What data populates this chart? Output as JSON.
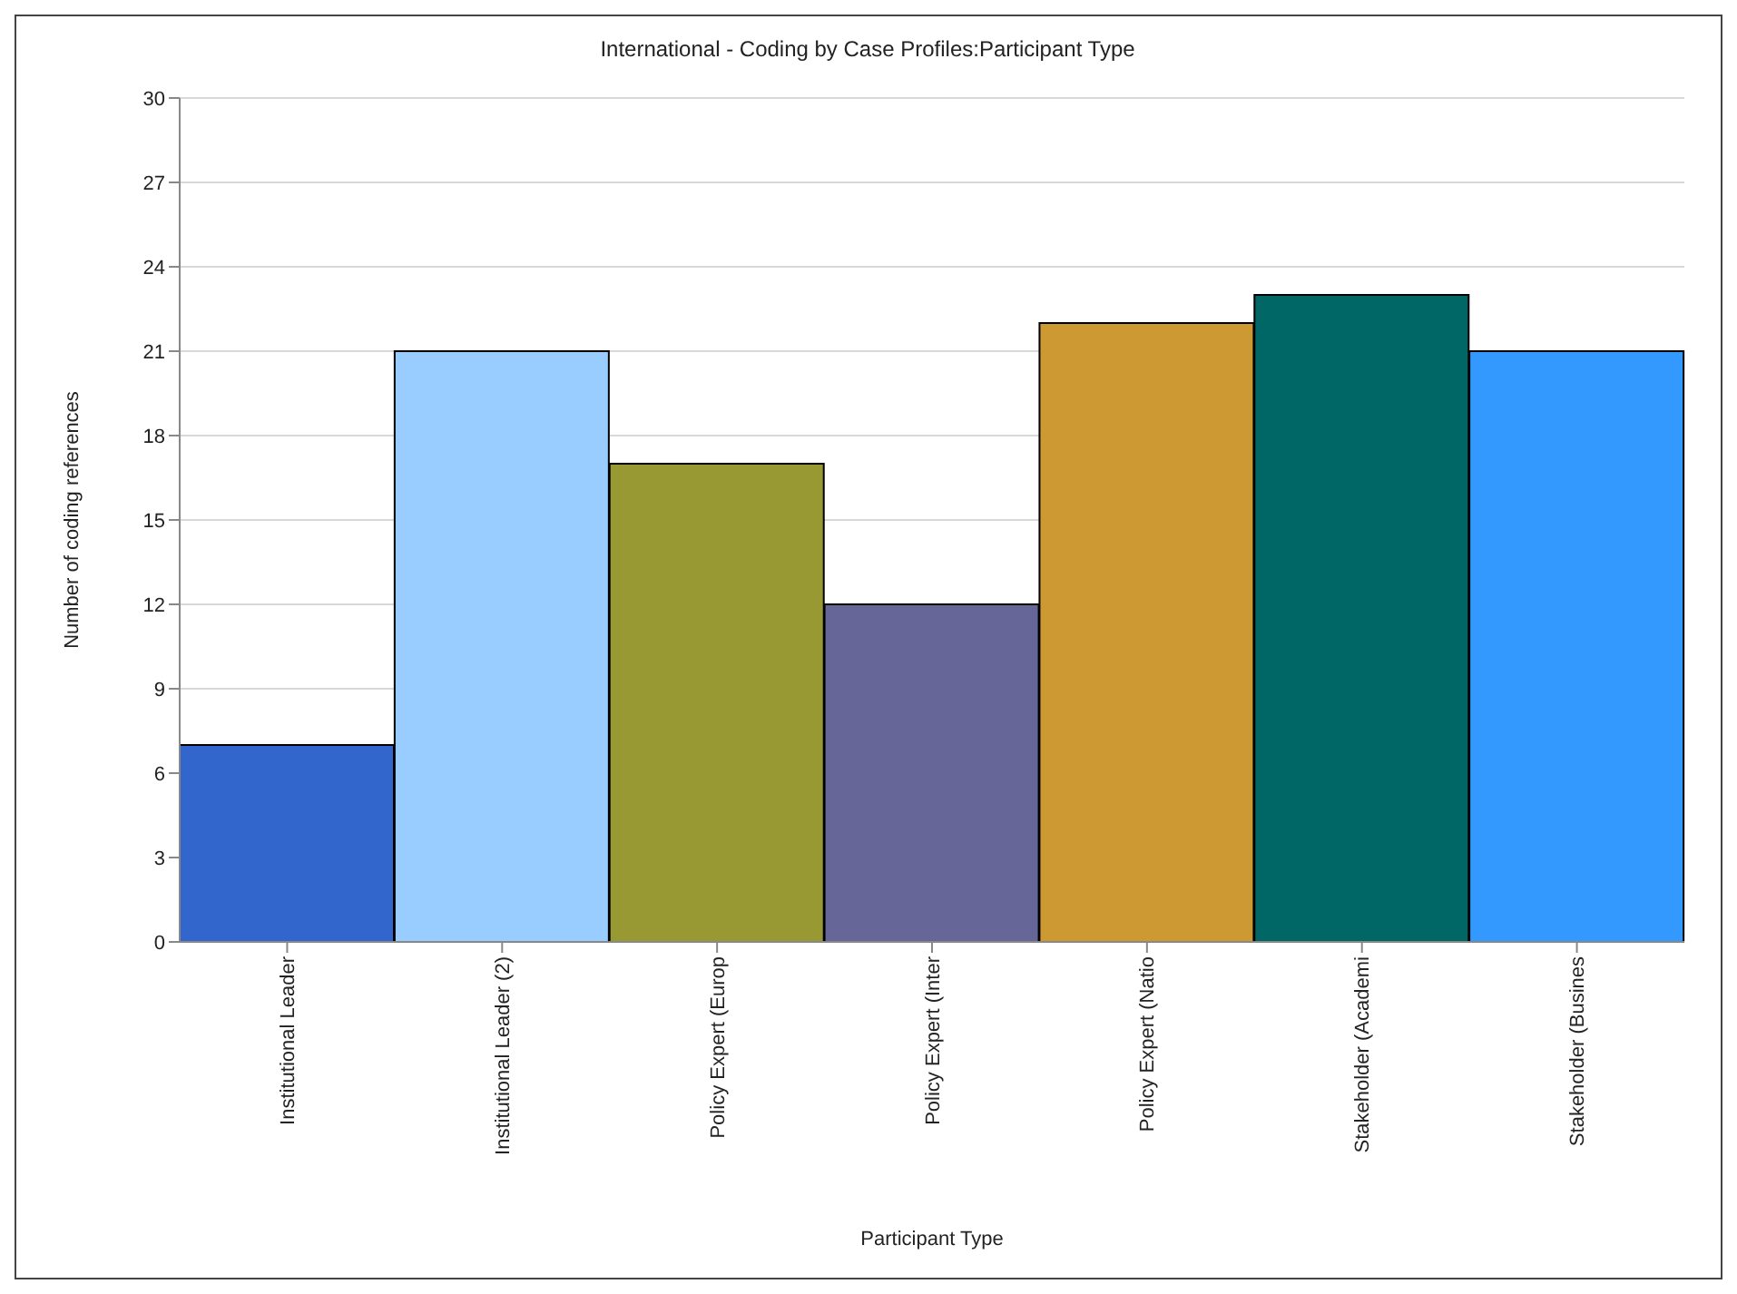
{
  "chart_data": {
    "type": "bar",
    "title": "International - Coding by Case Profiles:Participant Type",
    "xlabel": "Participant Type",
    "ylabel": "Number of coding references",
    "categories": [
      "Institutional Leader",
      "Institutional Leader (2)",
      "Policy Expert (Europ",
      "Policy Expert (Inter",
      "Policy Expert (Natio",
      "Stakeholder (Academi",
      "Stakeholder (Busines"
    ],
    "values": [
      7,
      21,
      17,
      12,
      22,
      23,
      21
    ],
    "colors": [
      "#3366cc",
      "#99ccff",
      "#999933",
      "#666699",
      "#cc9933",
      "#006666",
      "#3399ff"
    ],
    "ylim": [
      0,
      30
    ],
    "yticks": [
      0,
      3,
      6,
      9,
      12,
      15,
      18,
      21,
      24,
      27,
      30
    ],
    "grid": "y"
  }
}
